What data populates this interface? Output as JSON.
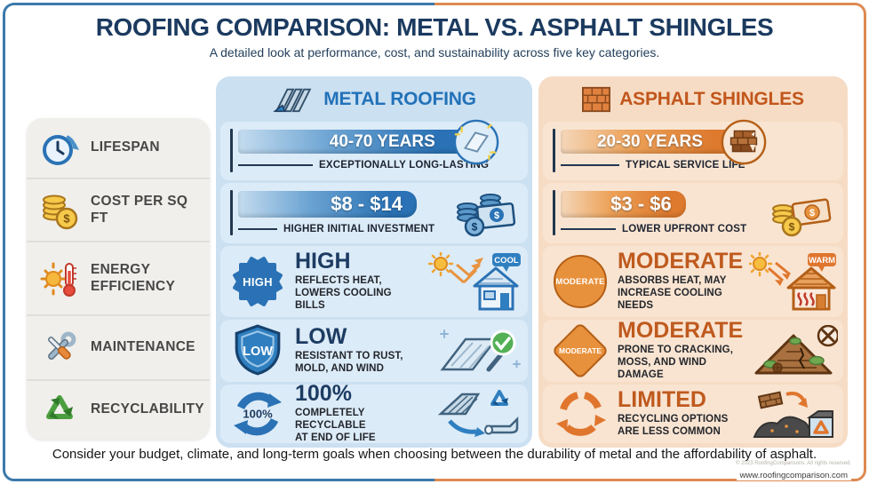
{
  "header": {
    "title": "ROOFING COMPARISON: METAL VS. ASPHALT SHINGLES",
    "subtitle": "A detailed look at performance, cost, and sustainability across five key categories."
  },
  "columns": {
    "metal": {
      "label": "METAL ROOFING",
      "icon": "metal-roof-icon"
    },
    "asphalt": {
      "label": "ASPHALT SHINGLES",
      "icon": "brick-icon"
    }
  },
  "categories": [
    {
      "label": "LIFESPAN",
      "icon": "clock-icon"
    },
    {
      "label": "COST PER SQ FT",
      "icon": "coins-icon"
    },
    {
      "label": "ENERGY EFFICIENCY",
      "icon": "sun-thermometer-icon"
    },
    {
      "label": "MAINTENANCE",
      "icon": "tools-icon"
    },
    {
      "label": "RECYCLABILITY",
      "icon": "recycle-icon"
    }
  ],
  "rows": {
    "lifespan": {
      "metal": {
        "value": "40-70 YEARS",
        "note": "EXCEPTIONALLY LONG-LASTING",
        "bar_pct": 84
      },
      "asphalt": {
        "value": "20-30 YEARS",
        "note": "TYPICAL SERVICE LIFE",
        "bar_pct": 66
      }
    },
    "cost": {
      "metal": {
        "value": "$8 - $14",
        "note": "HIGHER INITIAL INVESTMENT",
        "bar_pct": 64
      },
      "asphalt": {
        "value": "$3 - $6",
        "note": "LOWER UPFRONT COST",
        "bar_pct": 46
      }
    },
    "energy": {
      "metal": {
        "badge": "HIGH",
        "heading": "HIGH",
        "sub": "REFLECTS HEAT,\nLOWERS COOLING BILLS",
        "bubble": "COOL"
      },
      "asphalt": {
        "badge": "MODERATE",
        "heading": "MODERATE",
        "sub": "ABSORBS HEAT, MAY\nINCREASE COOLING NEEDS",
        "bubble": "WARM"
      }
    },
    "maintenance": {
      "metal": {
        "badge": "LOW",
        "heading": "LOW",
        "sub": "RESISTANT TO RUST,\nMOLD, AND WIND"
      },
      "asphalt": {
        "badge": "MODERATE",
        "heading": "MODERATE",
        "sub": "PRONE TO CRACKING,\nMOSS, AND WIND DAMAGE"
      }
    },
    "recyclability": {
      "metal": {
        "badge": "100%",
        "heading": "100%",
        "sub": "COMPLETELY RECYCLABLE\nAT END OF LIFE"
      },
      "asphalt": {
        "heading": "LIMITED",
        "sub": "RECYCLING OPTIONS\nARE LESS COMMON"
      }
    }
  },
  "footer": {
    "tip": "Consider your budget, climate, and long-term goals when choosing between the durability of metal and the affordability of asphalt.",
    "copyright": "© 2023 RoofingComparisons. All rights reserved.",
    "website": "www.roofingcomparison.com"
  },
  "colors": {
    "metal_accent": "#2a72b5",
    "asphalt_accent": "#dd7a2e",
    "navy": "#1b3a5f",
    "orange_heading": "#bf5a1e"
  }
}
